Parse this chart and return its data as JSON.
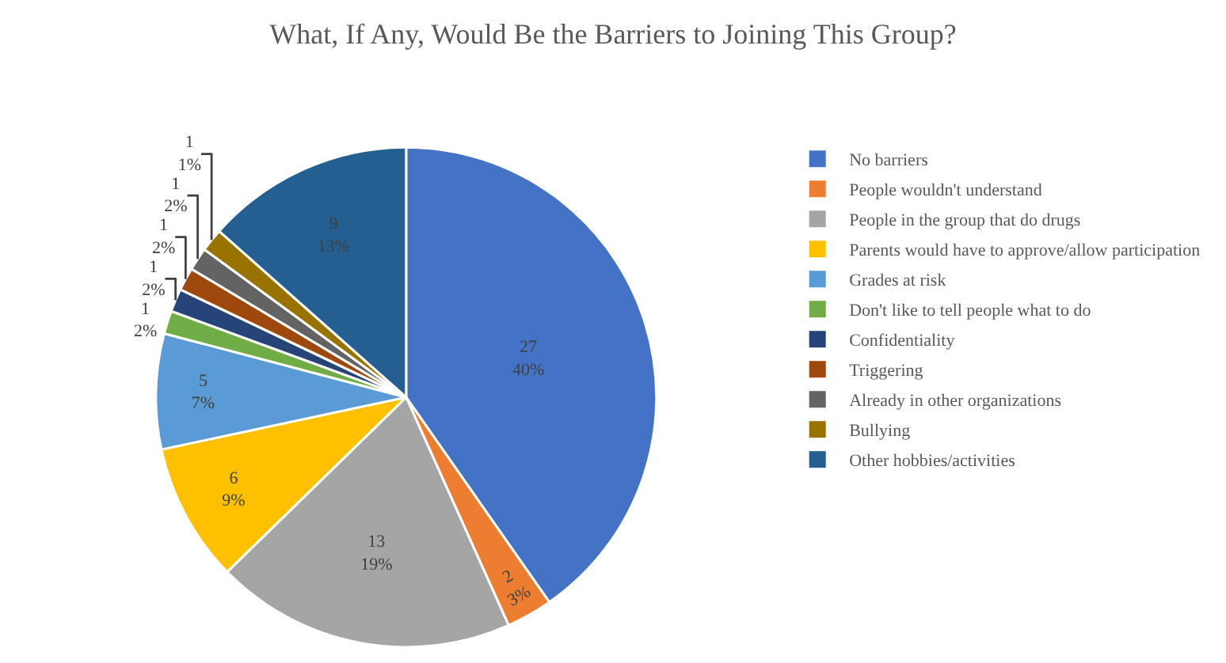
{
  "chart_data": {
    "type": "pie",
    "title": "What, If Any, Would Be the Barriers to Joining This Group?",
    "categories": [
      "No barriers",
      "People wouldn't understand",
      "People in the group that do drugs",
      "Parents would have to approve/allow participation",
      "Grades at risk",
      "Don't like to tell people what to do",
      "Confidentiality",
      "Triggering",
      "Already in other organizations",
      "Bullying",
      "Other hobbies/activities"
    ],
    "values": [
      27,
      2,
      13,
      6,
      5,
      1,
      1,
      1,
      1,
      1,
      9
    ],
    "value_labels": [
      "27\n40%",
      "2\n3%",
      "13\n19%",
      "6\n9%",
      "5\n7%",
      "1\n2%",
      "1\n2%",
      "1\n2%",
      "1\n2%",
      "1\n1%",
      "9\n13%"
    ],
    "colors": [
      "#4472c4",
      "#ed7d31",
      "#a5a5a5",
      "#ffc000",
      "#5b9bd5",
      "#70ad47",
      "#264478",
      "#9e480e",
      "#636363",
      "#997300",
      "#255e91"
    ],
    "legend": "right"
  }
}
